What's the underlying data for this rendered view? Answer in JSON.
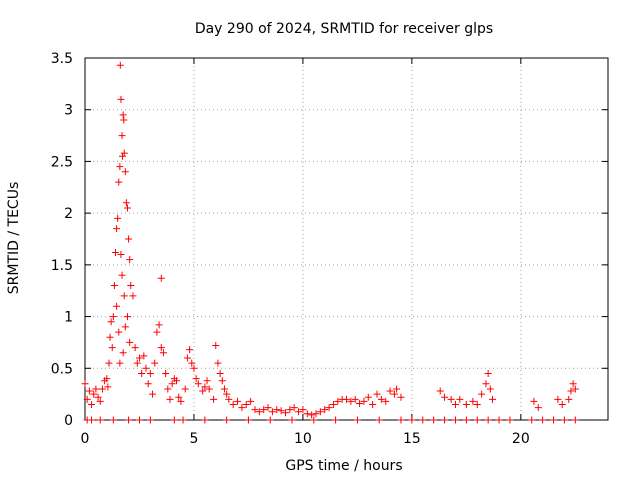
{
  "chart_data": {
    "type": "scatter",
    "title": "Day 290 of 2024, SRMTID for receiver glps",
    "xlabel": "GPS time / hours",
    "ylabel": "SRMTID / TECUs",
    "xlim": [
      0,
      24
    ],
    "ylim": [
      0,
      3.5
    ],
    "xticks": [
      0,
      5,
      10,
      15,
      20
    ],
    "xtick_labels": [
      "0",
      "5",
      "10",
      "15",
      "20"
    ],
    "yticks": [
      0,
      0.5,
      1,
      1.5,
      2,
      2.5,
      3,
      3.5
    ],
    "ytick_labels": [
      "0",
      "0.5",
      "1",
      "1.5",
      "2",
      "2.5",
      "3",
      "3.5"
    ],
    "grid": true,
    "marker": "+",
    "color": "#ff0000",
    "series": [
      {
        "name": "SRMTID",
        "points": [
          [
            0.0,
            0.35
          ],
          [
            0.1,
            0.2
          ],
          [
            0.2,
            0.28
          ],
          [
            0.3,
            0.15
          ],
          [
            0.4,
            0.25
          ],
          [
            0.5,
            0.3
          ],
          [
            0.6,
            0.22
          ],
          [
            0.7,
            0.18
          ],
          [
            0.8,
            0.3
          ],
          [
            0.9,
            0.38
          ],
          [
            1.0,
            0.4
          ],
          [
            1.05,
            0.32
          ],
          [
            1.1,
            0.55
          ],
          [
            1.15,
            0.8
          ],
          [
            1.2,
            0.95
          ],
          [
            1.25,
            0.7
          ],
          [
            1.3,
            1.0
          ],
          [
            1.35,
            1.3
          ],
          [
            1.4,
            1.62
          ],
          [
            1.45,
            1.85
          ],
          [
            1.5,
            1.95
          ],
          [
            1.55,
            2.3
          ],
          [
            1.6,
            2.45
          ],
          [
            1.62,
            3.43
          ],
          [
            1.65,
            3.1
          ],
          [
            1.7,
            2.75
          ],
          [
            1.72,
            2.55
          ],
          [
            1.75,
            2.95
          ],
          [
            1.78,
            2.9
          ],
          [
            1.8,
            2.58
          ],
          [
            1.85,
            2.4
          ],
          [
            1.9,
            2.1
          ],
          [
            1.95,
            2.05
          ],
          [
            2.0,
            1.75
          ],
          [
            2.05,
            1.55
          ],
          [
            2.1,
            1.3
          ],
          [
            1.45,
            1.1
          ],
          [
            1.55,
            0.85
          ],
          [
            1.65,
            1.6
          ],
          [
            1.7,
            1.4
          ],
          [
            1.8,
            1.2
          ],
          [
            1.6,
            0.55
          ],
          [
            1.75,
            0.65
          ],
          [
            1.85,
            0.9
          ],
          [
            1.95,
            1.0
          ],
          [
            2.05,
            0.75
          ],
          [
            2.2,
            1.2
          ],
          [
            2.3,
            0.7
          ],
          [
            2.4,
            0.55
          ],
          [
            2.5,
            0.6
          ],
          [
            2.6,
            0.45
          ],
          [
            2.7,
            0.62
          ],
          [
            2.8,
            0.5
          ],
          [
            2.9,
            0.35
          ],
          [
            3.0,
            0.45
          ],
          [
            3.1,
            0.25
          ],
          [
            3.2,
            0.55
          ],
          [
            3.3,
            0.85
          ],
          [
            3.4,
            0.92
          ],
          [
            3.5,
            0.7
          ],
          [
            3.6,
            0.65
          ],
          [
            3.7,
            0.45
          ],
          [
            3.8,
            0.3
          ],
          [
            3.9,
            0.2
          ],
          [
            3.5,
            1.37
          ],
          [
            4.0,
            0.35
          ],
          [
            4.1,
            0.4
          ],
          [
            4.2,
            0.38
          ],
          [
            4.3,
            0.22
          ],
          [
            4.4,
            0.18
          ],
          [
            4.6,
            0.3
          ],
          [
            4.7,
            0.6
          ],
          [
            4.8,
            0.68
          ],
          [
            4.9,
            0.55
          ],
          [
            5.0,
            0.5
          ],
          [
            5.1,
            0.4
          ],
          [
            5.2,
            0.35
          ],
          [
            5.4,
            0.28
          ],
          [
            5.5,
            0.32
          ],
          [
            5.6,
            0.38
          ],
          [
            5.7,
            0.3
          ],
          [
            5.9,
            0.2
          ],
          [
            6.0,
            0.72
          ],
          [
            6.1,
            0.55
          ],
          [
            6.2,
            0.45
          ],
          [
            6.3,
            0.38
          ],
          [
            6.4,
            0.3
          ],
          [
            6.5,
            0.25
          ],
          [
            6.6,
            0.2
          ],
          [
            6.8,
            0.15
          ],
          [
            7.0,
            0.18
          ],
          [
            7.2,
            0.12
          ],
          [
            7.4,
            0.15
          ],
          [
            7.6,
            0.18
          ],
          [
            7.8,
            0.1
          ],
          [
            8.0,
            0.08
          ],
          [
            8.2,
            0.1
          ],
          [
            8.4,
            0.12
          ],
          [
            8.6,
            0.08
          ],
          [
            8.8,
            0.1
          ],
          [
            9.0,
            0.09
          ],
          [
            9.2,
            0.07
          ],
          [
            9.4,
            0.1
          ],
          [
            9.6,
            0.12
          ],
          [
            9.8,
            0.08
          ],
          [
            10.0,
            0.1
          ],
          [
            10.2,
            0.06
          ],
          [
            10.4,
            0.05
          ],
          [
            10.6,
            0.06
          ],
          [
            10.8,
            0.08
          ],
          [
            11.0,
            0.1
          ],
          [
            11.2,
            0.12
          ],
          [
            11.4,
            0.15
          ],
          [
            11.6,
            0.18
          ],
          [
            11.8,
            0.2
          ],
          [
            12.0,
            0.2
          ],
          [
            12.2,
            0.18
          ],
          [
            12.4,
            0.2
          ],
          [
            12.6,
            0.16
          ],
          [
            12.8,
            0.18
          ],
          [
            13.0,
            0.22
          ],
          [
            13.2,
            0.15
          ],
          [
            13.4,
            0.25
          ],
          [
            13.6,
            0.2
          ],
          [
            13.8,
            0.18
          ],
          [
            14.0,
            0.28
          ],
          [
            14.2,
            0.25
          ],
          [
            14.3,
            0.3
          ],
          [
            14.5,
            0.22
          ],
          [
            16.3,
            0.28
          ],
          [
            16.5,
            0.22
          ],
          [
            16.8,
            0.2
          ],
          [
            17.0,
            0.15
          ],
          [
            17.2,
            0.2
          ],
          [
            17.5,
            0.15
          ],
          [
            17.8,
            0.18
          ],
          [
            18.0,
            0.15
          ],
          [
            18.2,
            0.25
          ],
          [
            18.4,
            0.35
          ],
          [
            18.5,
            0.45
          ],
          [
            18.6,
            0.3
          ],
          [
            18.7,
            0.2
          ],
          [
            20.6,
            0.18
          ],
          [
            20.8,
            0.12
          ],
          [
            21.7,
            0.2
          ],
          [
            21.9,
            0.15
          ],
          [
            22.2,
            0.2
          ],
          [
            22.3,
            0.28
          ],
          [
            22.4,
            0.35
          ],
          [
            22.5,
            0.3
          ],
          [
            0.1,
            0.0
          ],
          [
            0.3,
            0.0
          ],
          [
            0.7,
            0.0
          ],
          [
            1.3,
            0.0
          ],
          [
            2.0,
            0.0
          ],
          [
            2.5,
            0.0
          ],
          [
            3.0,
            0.0
          ],
          [
            4.1,
            0.0
          ],
          [
            4.5,
            0.0
          ],
          [
            5.5,
            0.0
          ],
          [
            6.5,
            0.0
          ],
          [
            7.5,
            0.0
          ],
          [
            8.5,
            0.0
          ],
          [
            9.5,
            0.0
          ],
          [
            10.5,
            0.0
          ],
          [
            11.5,
            0.0
          ],
          [
            12.5,
            0.0
          ],
          [
            13.5,
            0.0
          ],
          [
            14.5,
            0.0
          ],
          [
            15.0,
            0.0
          ],
          [
            15.5,
            0.0
          ],
          [
            16.0,
            0.0
          ],
          [
            16.5,
            0.0
          ],
          [
            17.0,
            0.0
          ],
          [
            17.5,
            0.0
          ],
          [
            18.0,
            0.0
          ],
          [
            18.5,
            0.0
          ],
          [
            19.0,
            0.0
          ],
          [
            19.5,
            0.0
          ],
          [
            20.5,
            0.0
          ],
          [
            21.0,
            0.0
          ],
          [
            21.5,
            0.0
          ],
          [
            22.0,
            0.0
          ],
          [
            22.5,
            0.0
          ]
        ]
      }
    ]
  }
}
